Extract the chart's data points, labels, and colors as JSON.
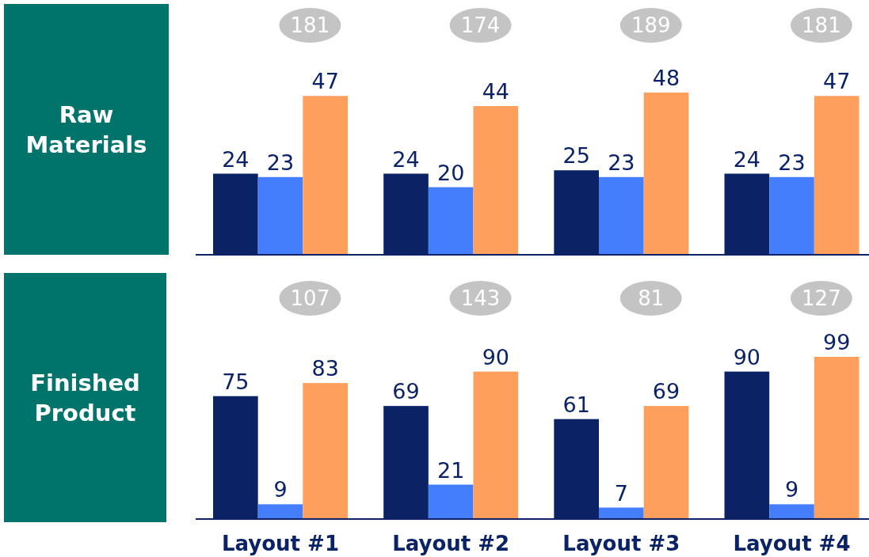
{
  "chart_data": [
    {
      "type": "bar",
      "title": "Raw Materials",
      "categories": [
        null,
        null,
        null,
        null
      ],
      "series": [
        {
          "color": "#0b2265",
          "values": [
            24,
            24,
            25,
            24
          ]
        },
        {
          "color": "#457efd",
          "values": [
            23,
            20,
            23,
            23
          ]
        },
        {
          "color": "#ff9f5e",
          "values": [
            47,
            44,
            48,
            47
          ]
        }
      ],
      "data_labels": true,
      "tick_labels": false,
      "annotations": [
        "181",
        "174",
        "189",
        "181"
      ]
    },
    {
      "type": "bar",
      "title": "Finished Product",
      "categories": [
        "Layout #1",
        "Layout #2",
        "Layout #3",
        "Layout #4"
      ],
      "series": [
        {
          "color": "#0b2265",
          "values": [
            75,
            69,
            61,
            90
          ]
        },
        {
          "color": "#457efd",
          "values": [
            9,
            21,
            7,
            9
          ]
        },
        {
          "color": "#ff9f5e",
          "values": [
            83,
            90,
            69,
            99
          ]
        }
      ],
      "data_labels": true,
      "tick_labels": "x",
      "annotations": [
        "107",
        "143",
        "81",
        "127"
      ]
    }
  ]
}
